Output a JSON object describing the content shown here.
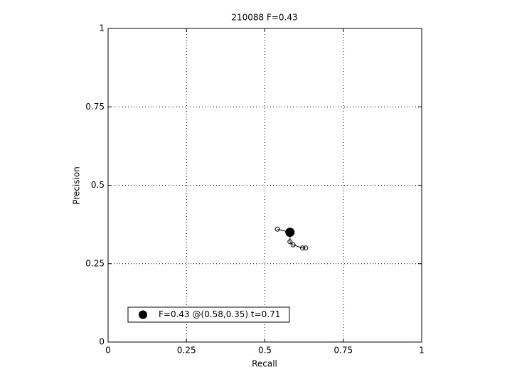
{
  "chart_data": {
    "type": "line",
    "title": "210088 F=0.43",
    "x_label": "Recall",
    "y_label": "Precision",
    "series": [
      {
        "color": "#000000",
        "marker": "open-circle",
        "x": [
          0.54,
          0.58,
          0.58,
          0.59,
          0.62,
          0.63
        ],
        "values": [
          0.36,
          0.35,
          0.32,
          0.31,
          0.3,
          0.3
        ]
      },
      {
        "name": "F=0.43 @(0.58,0.35) t=0.71",
        "color": "#000000",
        "marker": "filled-circle",
        "x": [
          0.58
        ],
        "values": [
          0.35
        ]
      }
    ],
    "xlim": [
      0,
      1
    ],
    "ylim": [
      0,
      1
    ],
    "xticks": [
      0,
      0.25,
      0.5,
      0.75,
      1
    ],
    "yticks": [
      0,
      0.25,
      0.5,
      0.75,
      1
    ],
    "grid": true,
    "legend_position": "lower-left"
  }
}
